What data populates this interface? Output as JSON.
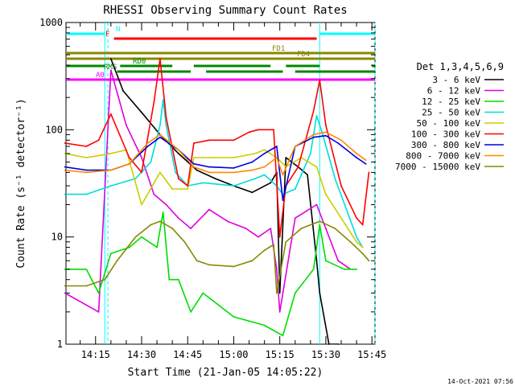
{
  "chart_data": {
    "type": "line",
    "title": "RHESSI Observing Summary Count Rates",
    "xlabel": "Start Time (21-Jan-05 14:05:22)",
    "ylabel": "Count Rate (s⁻¹ detector⁻¹)",
    "y_scale": "log",
    "ylim": [
      1,
      1000
    ],
    "xlim": [
      "14:05:22",
      "15:46:00"
    ],
    "x_ticks": [
      "14:15",
      "14:30",
      "14:45",
      "15:00",
      "15:15",
      "15:30",
      "15:45"
    ],
    "y_ticks": [
      "1",
      "10",
      "100",
      "1000"
    ],
    "grid": false,
    "legend_position": "right",
    "legend_title": "Det 1,3,4,5,6,9",
    "timestamp": "14-Oct-2021 07:56",
    "series": [
      {
        "name": "3 - 6 keV",
        "color": "#000000",
        "points": [
          [
            "14:20",
            460
          ],
          [
            "14:24",
            230
          ],
          [
            "14:30",
            145
          ],
          [
            "14:36",
            90
          ],
          [
            "14:42",
            60
          ],
          [
            "14:48",
            42
          ],
          [
            "14:54",
            35
          ],
          [
            "15:00",
            30
          ],
          [
            "15:06",
            26
          ],
          [
            "15:12",
            32
          ],
          [
            "15:14",
            40
          ],
          [
            "15:15",
            3
          ],
          [
            "15:17",
            55
          ],
          [
            "15:21",
            45
          ],
          [
            "15:24",
            38
          ],
          [
            "15:27",
            6
          ],
          [
            "15:28",
            3
          ],
          [
            "15:31",
            1
          ],
          [
            "15:34",
            1
          ]
        ]
      },
      {
        "name": "6 - 12 keV",
        "color": "#dd00dd",
        "points": [
          [
            "14:05",
            3
          ],
          [
            "14:16",
            2
          ],
          [
            "14:20",
            360
          ],
          [
            "14:25",
            110
          ],
          [
            "14:30",
            55
          ],
          [
            "14:34",
            25
          ],
          [
            "14:38",
            20
          ],
          [
            "14:42",
            15
          ],
          [
            "14:46",
            12
          ],
          [
            "14:52",
            18
          ],
          [
            "14:58",
            14
          ],
          [
            "15:04",
            12
          ],
          [
            "15:08",
            10
          ],
          [
            "15:12",
            12
          ],
          [
            "15:14",
            5
          ],
          [
            "15:15",
            2
          ],
          [
            "15:20",
            15
          ],
          [
            "15:27",
            20
          ],
          [
            "15:30",
            12
          ],
          [
            "15:34",
            6
          ],
          [
            "15:38",
            5
          ]
        ]
      },
      {
        "name": "12 - 25 keV",
        "color": "#00dd00",
        "points": [
          [
            "14:05",
            5
          ],
          [
            "14:12",
            5
          ],
          [
            "14:16",
            3
          ],
          [
            "14:20",
            7
          ],
          [
            "14:26",
            8
          ],
          [
            "14:30",
            10
          ],
          [
            "14:35",
            8
          ],
          [
            "14:37",
            17
          ],
          [
            "14:39",
            4
          ],
          [
            "14:42",
            4
          ],
          [
            "14:46",
            2
          ],
          [
            "14:50",
            3
          ],
          [
            "15:00",
            1.8
          ],
          [
            "15:10",
            1.5
          ],
          [
            "15:16",
            1.2
          ],
          [
            "15:20",
            3
          ],
          [
            "15:26",
            5
          ],
          [
            "15:28",
            13
          ],
          [
            "15:30",
            6
          ],
          [
            "15:36",
            5
          ],
          [
            "15:40",
            5
          ]
        ]
      },
      {
        "name": "25 - 50 keV",
        "color": "#00dddd",
        "points": [
          [
            "14:05",
            25
          ],
          [
            "14:12",
            25
          ],
          [
            "14:20",
            30
          ],
          [
            "14:28",
            35
          ],
          [
            "14:33",
            50
          ],
          [
            "14:36",
            110
          ],
          [
            "14:37",
            190
          ],
          [
            "14:38",
            110
          ],
          [
            "14:41",
            40
          ],
          [
            "14:45",
            30
          ],
          [
            "14:50",
            32
          ],
          [
            "15:00",
            30
          ],
          [
            "15:07",
            35
          ],
          [
            "15:10",
            38
          ],
          [
            "15:14",
            30
          ],
          [
            "15:16",
            25
          ],
          [
            "15:20",
            28
          ],
          [
            "15:25",
            60
          ],
          [
            "15:27",
            135
          ],
          [
            "15:29",
            90
          ],
          [
            "15:33",
            35
          ],
          [
            "15:40",
            10
          ],
          [
            "15:42",
            8
          ]
        ]
      },
      {
        "name": "50 - 100 keV",
        "color": "#cccc00",
        "points": [
          [
            "14:05",
            60
          ],
          [
            "14:12",
            55
          ],
          [
            "14:20",
            60
          ],
          [
            "14:25",
            65
          ],
          [
            "14:30",
            20
          ],
          [
            "14:36",
            40
          ],
          [
            "14:40",
            28
          ],
          [
            "14:45",
            28
          ],
          [
            "14:47",
            55
          ],
          [
            "14:52",
            55
          ],
          [
            "15:00",
            55
          ],
          [
            "15:07",
            60
          ],
          [
            "15:10",
            65
          ],
          [
            "15:14",
            55
          ],
          [
            "15:17",
            45
          ],
          [
            "15:22",
            55
          ],
          [
            "15:27",
            45
          ],
          [
            "15:30",
            25
          ],
          [
            "15:40",
            9
          ],
          [
            "15:42",
            8
          ]
        ]
      },
      {
        "name": "100 - 300 keV",
        "color": "#ff0000",
        "points": [
          [
            "14:05",
            75
          ],
          [
            "14:12",
            70
          ],
          [
            "14:16",
            80
          ],
          [
            "14:20",
            140
          ],
          [
            "14:26",
            55
          ],
          [
            "14:30",
            40
          ],
          [
            "14:34",
            180
          ],
          [
            "14:36",
            460
          ],
          [
            "14:38",
            130
          ],
          [
            "14:42",
            35
          ],
          [
            "14:45",
            30
          ],
          [
            "14:47",
            75
          ],
          [
            "14:52",
            80
          ],
          [
            "15:00",
            80
          ],
          [
            "15:05",
            95
          ],
          [
            "15:08",
            100
          ],
          [
            "15:13",
            100
          ],
          [
            "15:15",
            10
          ],
          [
            "15:17",
            30
          ],
          [
            "15:21",
            45
          ],
          [
            "15:26",
            150
          ],
          [
            "15:28",
            290
          ],
          [
            "15:30",
            110
          ],
          [
            "15:35",
            30
          ],
          [
            "15:40",
            15
          ],
          [
            "15:42",
            13
          ],
          [
            "15:44",
            40
          ]
        ]
      },
      {
        "name": "300 - 800 keV",
        "color": "#0000dd",
        "points": [
          [
            "14:05",
            45
          ],
          [
            "14:12",
            42
          ],
          [
            "14:20",
            42
          ],
          [
            "14:26",
            48
          ],
          [
            "14:32",
            70
          ],
          [
            "14:36",
            85
          ],
          [
            "14:42",
            65
          ],
          [
            "14:47",
            48
          ],
          [
            "14:52",
            45
          ],
          [
            "15:00",
            44
          ],
          [
            "15:06",
            50
          ],
          [
            "15:10",
            60
          ],
          [
            "15:14",
            70
          ],
          [
            "15:16",
            22
          ],
          [
            "15:20",
            70
          ],
          [
            "15:26",
            85
          ],
          [
            "15:30",
            88
          ],
          [
            "15:34",
            75
          ],
          [
            "15:40",
            55
          ],
          [
            "15:43",
            48
          ]
        ]
      },
      {
        "name": "800 - 7000 keV",
        "color": "#ff8800",
        "points": [
          [
            "14:05",
            42
          ],
          [
            "14:12",
            40
          ],
          [
            "14:20",
            42
          ],
          [
            "14:26",
            48
          ],
          [
            "14:32",
            75
          ],
          [
            "14:36",
            90
          ],
          [
            "14:42",
            65
          ],
          [
            "14:47",
            45
          ],
          [
            "14:52",
            40
          ],
          [
            "15:00",
            40
          ],
          [
            "15:06",
            42
          ],
          [
            "15:10",
            45
          ],
          [
            "15:14",
            55
          ],
          [
            "15:16",
            38
          ],
          [
            "15:20",
            70
          ],
          [
            "15:26",
            90
          ],
          [
            "15:30",
            95
          ],
          [
            "15:35",
            80
          ],
          [
            "15:40",
            60
          ],
          [
            "15:43",
            52
          ]
        ]
      },
      {
        "name": "7000 - 15000 keV",
        "color": "#888800",
        "points": [
          [
            "14:05",
            3.5
          ],
          [
            "14:12",
            3.5
          ],
          [
            "14:18",
            4
          ],
          [
            "14:22",
            6
          ],
          [
            "14:28",
            10
          ],
          [
            "14:33",
            13
          ],
          [
            "14:36",
            14
          ],
          [
            "14:40",
            12
          ],
          [
            "14:44",
            9
          ],
          [
            "14:48",
            6
          ],
          [
            "14:52",
            5.5
          ],
          [
            "15:00",
            5.3
          ],
          [
            "15:06",
            6
          ],
          [
            "15:10",
            7.5
          ],
          [
            "15:13",
            8.5
          ],
          [
            "15:14",
            3
          ],
          [
            "15:17",
            9
          ],
          [
            "15:22",
            12
          ],
          [
            "15:28",
            14
          ],
          [
            "15:33",
            12
          ],
          [
            "15:38",
            9
          ],
          [
            "15:42",
            7
          ],
          [
            "15:44",
            6
          ]
        ]
      }
    ],
    "flags": [
      {
        "label": "N",
        "color": "#00ffff",
        "segments": [
          [
            "14:05",
            "14:18"
          ],
          [
            "15:28",
            "15:46"
          ]
        ]
      },
      {
        "label": "F",
        "color": "#ff0000",
        "segments": [
          [
            "14:21",
            "15:27"
          ]
        ]
      },
      {
        "label": "FD1",
        "color": "#888800",
        "segments": [
          [
            "14:05",
            "15:46"
          ]
        ]
      },
      {
        "label": "FD4",
        "color": "#888800",
        "segments": [
          [
            "14:05",
            "15:46"
          ]
        ]
      },
      {
        "label": "RD0",
        "color": "#008800",
        "segments": [
          [
            "14:05",
            "14:18"
          ],
          [
            "14:23",
            "14:40"
          ],
          [
            "14:47",
            "15:12"
          ],
          [
            "15:17",
            "15:28"
          ],
          [
            "15:45",
            "15:46"
          ]
        ]
      },
      {
        "label": "RMS",
        "color": "#008800",
        "segments": [
          [
            "14:22",
            "14:46"
          ],
          [
            "14:51",
            "15:16"
          ],
          [
            "15:20",
            "15:46"
          ]
        ]
      },
      {
        "label": "A0",
        "color": "#ff00ff",
        "segments": [
          [
            "14:05",
            "15:46"
          ]
        ]
      }
    ],
    "vlines": [
      {
        "color": "#00ffff",
        "x": "14:18",
        "dashed": false
      },
      {
        "color": "#00ffff",
        "x": "14:19",
        "dashed": true
      },
      {
        "color": "#00ffff",
        "x": "15:28",
        "dashed": false
      },
      {
        "color": "#00ffff",
        "x": "15:46",
        "dashed": true
      }
    ]
  }
}
